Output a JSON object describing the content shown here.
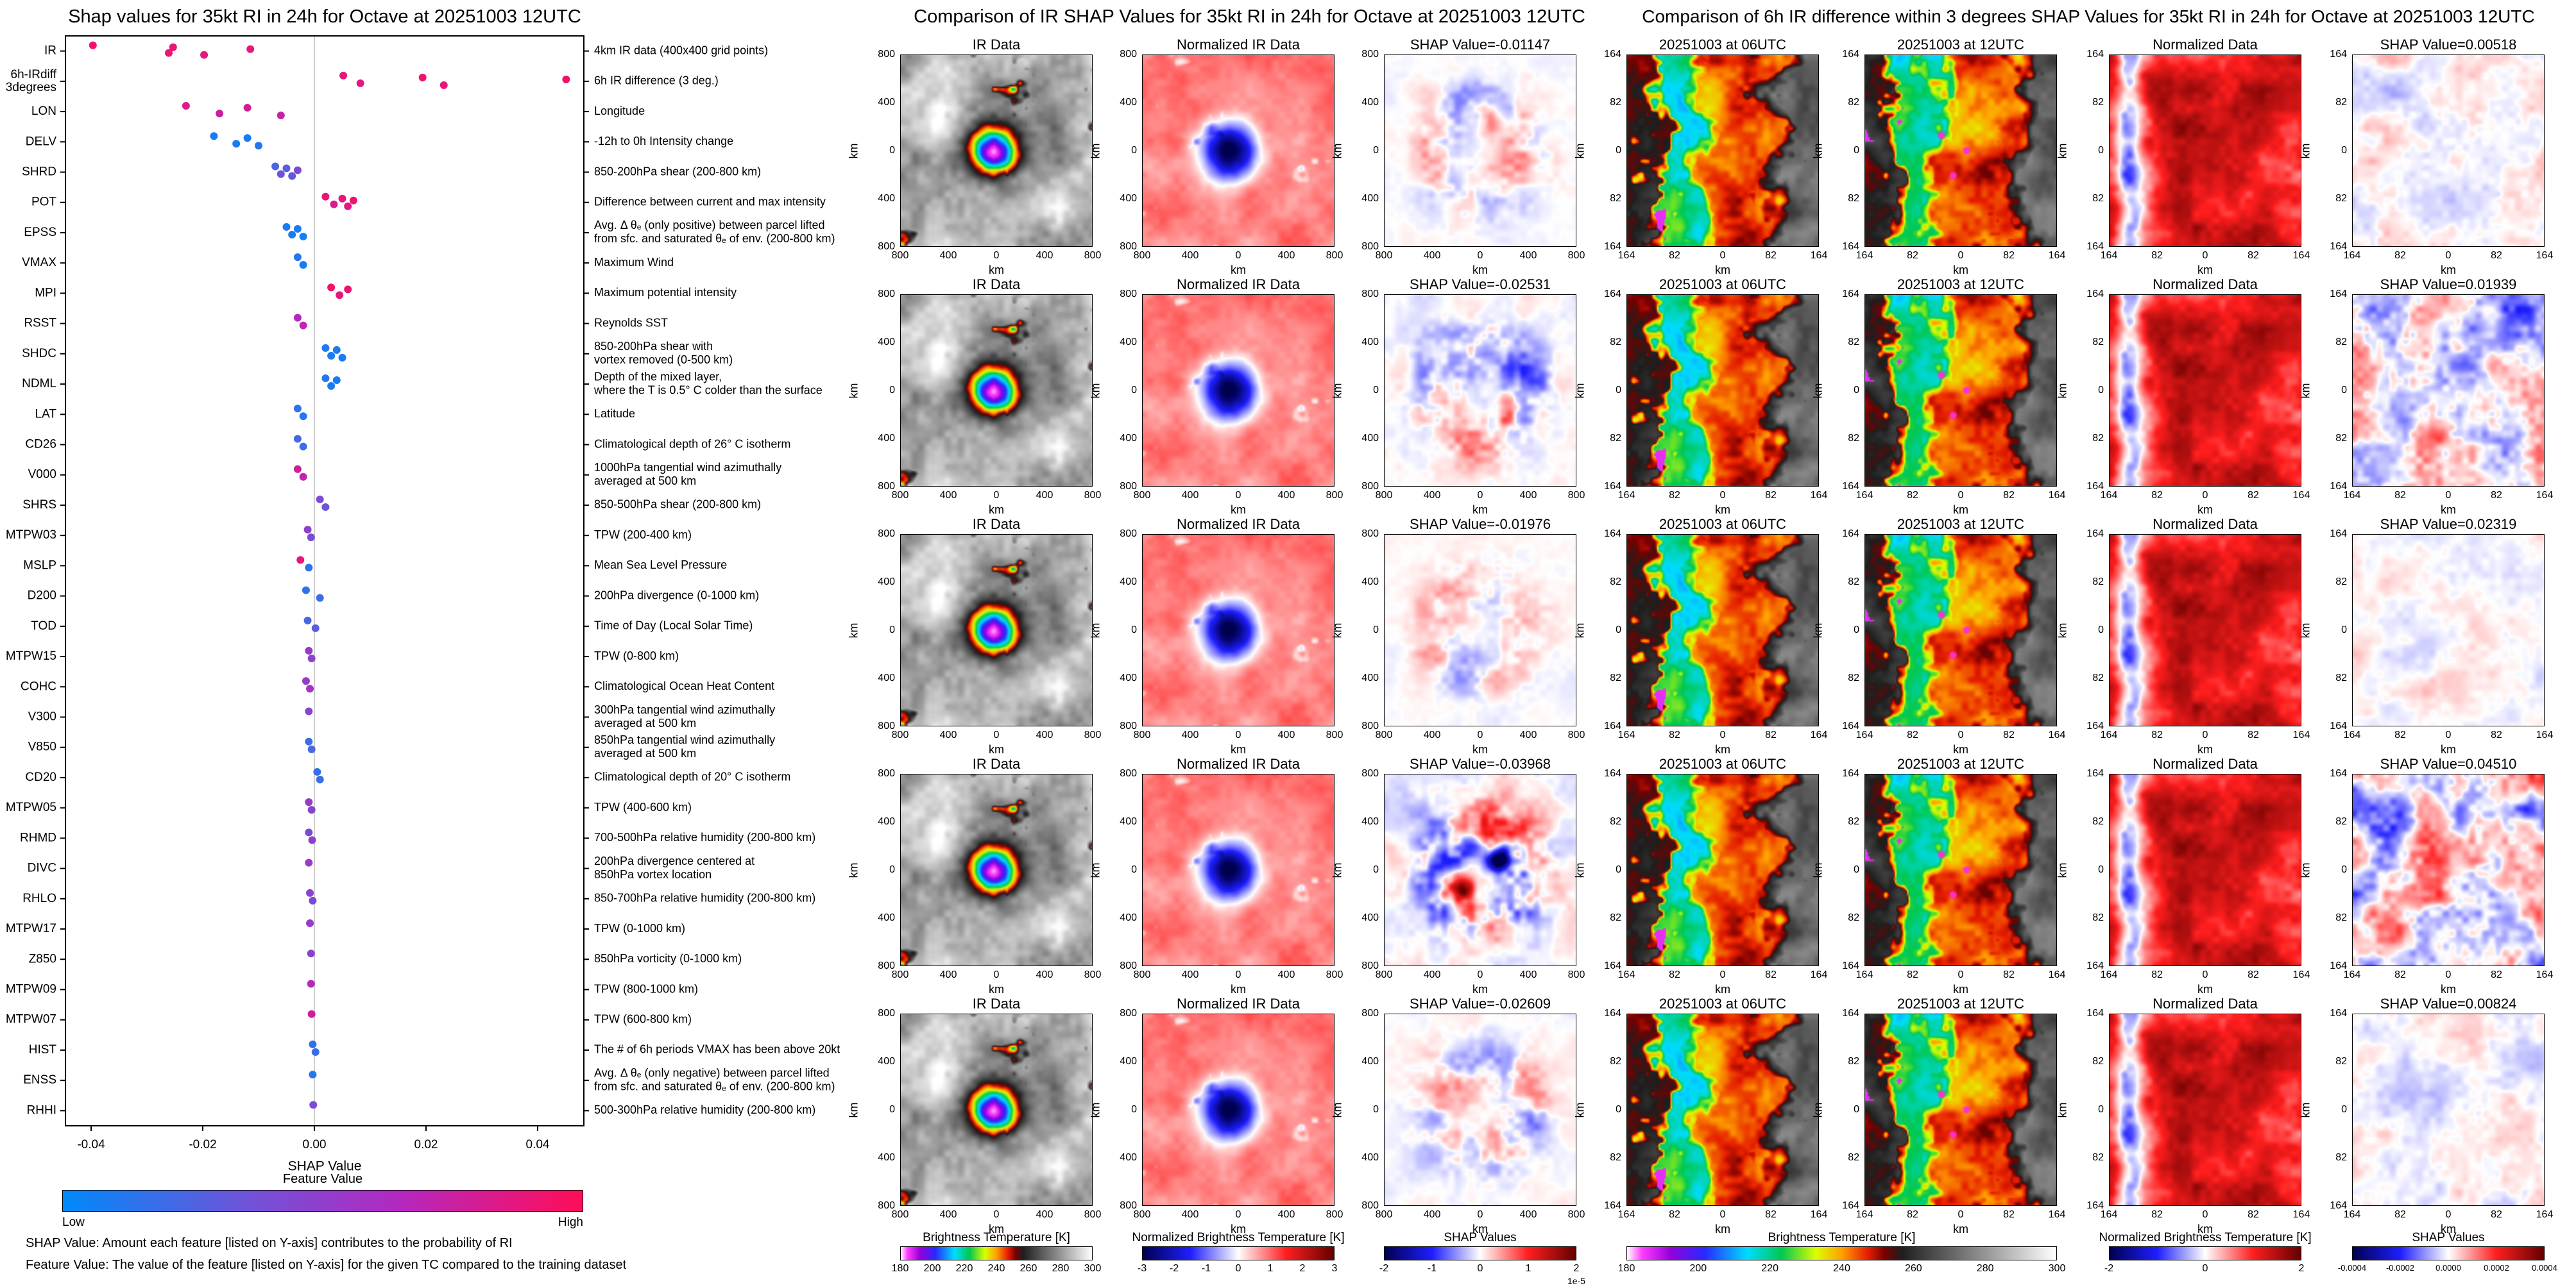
{
  "chart_data": [
    {
      "type": "scatter",
      "id": "shap-beeswarm",
      "title": "Shap values for 35kt RI in 24h for Octave at 20251003 12UTC",
      "xlabel": "SHAP Value",
      "xlim": [
        -0.05,
        0.05
      ],
      "xticks": [
        -0.04,
        -0.02,
        0,
        0.02,
        0.04
      ],
      "colorbar": {
        "title": "Feature Value",
        "low": "Low",
        "high": "High",
        "low_color": "#0089fa",
        "high_color": "#ff0d57"
      },
      "footnotes": [
        "SHAP Value: Amount each feature [listed on Y-axis] contributes to the probability of RI",
        "Feature Value: The value of the feature [listed on Y-axis] for the given TC compared to the training dataset"
      ],
      "features": [
        {
          "name": "IR",
          "desc": "4km IR data (400x400 grid points)",
          "points": [
            [
              -0.03968,
              0.95
            ],
            [
              -0.02609,
              0.9
            ],
            [
              -0.02531,
              0.92
            ],
            [
              -0.01976,
              0.88
            ],
            [
              -0.01147,
              0.9
            ]
          ]
        },
        {
          "name": "6h-IRdiff\n3degrees",
          "desc": "6h IR difference (3 deg.)",
          "points": [
            [
              0.00518,
              0.9
            ],
            [
              0.00824,
              0.88
            ],
            [
              0.01939,
              0.92
            ],
            [
              0.02319,
              0.9
            ],
            [
              0.0451,
              0.95
            ]
          ]
        },
        {
          "name": "LON",
          "desc": "Longitude",
          "points": [
            [
              -0.023,
              0.85
            ],
            [
              -0.017,
              0.8
            ],
            [
              -0.012,
              0.82
            ],
            [
              -0.006,
              0.78
            ]
          ]
        },
        {
          "name": "DELV",
          "desc": "-12h to 0h Intensity change",
          "points": [
            [
              -0.018,
              0.1
            ],
            [
              -0.014,
              0.12
            ],
            [
              -0.012,
              0.1
            ],
            [
              -0.01,
              0.15
            ]
          ]
        },
        {
          "name": "SHRD",
          "desc": "850-200hPa shear (200-800 km)",
          "points": [
            [
              -0.007,
              0.3
            ],
            [
              -0.006,
              0.45
            ],
            [
              -0.005,
              0.35
            ],
            [
              -0.004,
              0.4
            ],
            [
              -0.003,
              0.5
            ]
          ]
        },
        {
          "name": "POT",
          "desc": "Difference between current and max intensity",
          "points": [
            [
              0.002,
              0.9
            ],
            [
              0.0035,
              0.85
            ],
            [
              0.005,
              0.9
            ],
            [
              0.006,
              0.88
            ],
            [
              0.007,
              0.92
            ]
          ]
        },
        {
          "name": "EPSS",
          "desc": "Avg. Δ θₑ (only positive) between parcel lifted\nfrom sfc. and saturated θₑ of env. (200-800 km)",
          "points": [
            [
              -0.005,
              0.1
            ],
            [
              -0.004,
              0.12
            ],
            [
              -0.003,
              0.1
            ],
            [
              -0.002,
              0.08
            ]
          ]
        },
        {
          "name": "VMAX",
          "desc": "Maximum Wind",
          "points": [
            [
              -0.003,
              0.15
            ],
            [
              -0.002,
              0.1
            ]
          ]
        },
        {
          "name": "MPI",
          "desc": "Maximum potential intensity",
          "points": [
            [
              0.003,
              0.95
            ],
            [
              0.0045,
              0.9
            ],
            [
              0.006,
              0.92
            ]
          ]
        },
        {
          "name": "RSST",
          "desc": "Reynolds SST",
          "points": [
            [
              -0.003,
              0.7
            ],
            [
              -0.002,
              0.75
            ]
          ]
        },
        {
          "name": "SHDC",
          "desc": "850-200hPa shear with\nvortex removed (0-500 km)",
          "points": [
            [
              0.002,
              0.15
            ],
            [
              0.003,
              0.1
            ],
            [
              0.004,
              0.12
            ],
            [
              0.005,
              0.1
            ]
          ]
        },
        {
          "name": "NDML",
          "desc": "Depth of the mixed layer,\nwhere the T is 0.5° C colder than the surface",
          "points": [
            [
              0.002,
              0.15
            ],
            [
              0.003,
              0.12
            ],
            [
              0.004,
              0.1
            ]
          ]
        },
        {
          "name": "LAT",
          "desc": "Latitude",
          "points": [
            [
              -0.003,
              0.2
            ],
            [
              -0.002,
              0.15
            ]
          ]
        },
        {
          "name": "CD26",
          "desc": "Climatological depth of 26° C isotherm",
          "points": [
            [
              -0.003,
              0.3
            ],
            [
              -0.002,
              0.25
            ]
          ]
        },
        {
          "name": "V000",
          "desc": "1000hPa tangential wind azimuthally\naveraged at 500 km",
          "points": [
            [
              -0.003,
              0.8
            ],
            [
              -0.002,
              0.75
            ]
          ]
        },
        {
          "name": "SHRS",
          "desc": "850-500hPa shear (200-800 km)",
          "points": [
            [
              0.001,
              0.5
            ],
            [
              0.002,
              0.45
            ]
          ]
        },
        {
          "name": "MTPW03",
          "desc": "TPW (200-400 km)",
          "points": [
            [
              -0.0012,
              0.55
            ],
            [
              -0.0006,
              0.5
            ]
          ]
        },
        {
          "name": "MSLP",
          "desc": "Mean Sea Level Pressure",
          "points": [
            [
              -0.0025,
              0.9
            ],
            [
              -0.001,
              0.2
            ]
          ]
        },
        {
          "name": "D200",
          "desc": "200hPa divergence (0-1000 km)",
          "points": [
            [
              -0.0015,
              0.2
            ],
            [
              0.001,
              0.25
            ]
          ]
        },
        {
          "name": "TOD",
          "desc": "Time of Day (Local Solar Time)",
          "points": [
            [
              -0.0012,
              0.3
            ],
            [
              0.0002,
              0.35
            ]
          ]
        },
        {
          "name": "MTPW15",
          "desc": "TPW (0-800 km)",
          "points": [
            [
              -0.001,
              0.6
            ],
            [
              -0.0005,
              0.55
            ]
          ]
        },
        {
          "name": "COHC",
          "desc": "Climatological Ocean Heat Content",
          "points": [
            [
              -0.0015,
              0.6
            ],
            [
              -0.0008,
              0.65
            ]
          ]
        },
        {
          "name": "V300",
          "desc": "300hPa tangential wind azimuthally\naveraged at 500 km",
          "points": [
            [
              -0.001,
              0.55
            ]
          ]
        },
        {
          "name": "V850",
          "desc": "850hPa tangential wind azimuthally\naveraged at 500 km",
          "points": [
            [
              -0.001,
              0.25
            ],
            [
              -0.0005,
              0.3
            ]
          ]
        },
        {
          "name": "CD20",
          "desc": "Climatological depth of 20° C isotherm",
          "points": [
            [
              0.0005,
              0.2
            ],
            [
              0.001,
              0.25
            ]
          ]
        },
        {
          "name": "MTPW05",
          "desc": "TPW (400-600 km)",
          "points": [
            [
              -0.001,
              0.6
            ],
            [
              -0.0005,
              0.55
            ]
          ]
        },
        {
          "name": "RHMD",
          "desc": "700-500hPa relative humidity (200-800 km)",
          "points": [
            [
              -0.001,
              0.5
            ],
            [
              -0.0004,
              0.55
            ]
          ]
        },
        {
          "name": "DIVC",
          "desc": "200hPa divergence centered at\n850hPa vortex location",
          "points": [
            [
              -0.001,
              0.6
            ]
          ]
        },
        {
          "name": "RHLO",
          "desc": "850-700hPa relative humidity (200-800 km)",
          "points": [
            [
              -0.0008,
              0.55
            ],
            [
              -0.0003,
              0.5
            ]
          ]
        },
        {
          "name": "MTPW17",
          "desc": "TPW (0-1000 km)",
          "points": [
            [
              -0.0008,
              0.6
            ]
          ]
        },
        {
          "name": "Z850",
          "desc": "850hPa vorticity (0-1000 km)",
          "points": [
            [
              -0.0006,
              0.55
            ]
          ]
        },
        {
          "name": "MTPW09",
          "desc": "TPW (800-1000 km)",
          "points": [
            [
              -0.0006,
              0.7
            ]
          ]
        },
        {
          "name": "MTPW07",
          "desc": "TPW (600-800 km)",
          "points": [
            [
              -0.0005,
              0.8
            ]
          ]
        },
        {
          "name": "HIST",
          "desc": "The # of 6h periods VMAX has been above 20kt",
          "points": [
            [
              -0.0003,
              0.2
            ],
            [
              0.0002,
              0.25
            ]
          ]
        },
        {
          "name": "ENSS",
          "desc": "Avg. Δ θₑ (only negative) between parcel lifted\nfrom sfc. and saturated θₑ of env. (200-800 km)",
          "points": [
            [
              -0.0003,
              0.15
            ]
          ]
        },
        {
          "name": "RHHI",
          "desc": "500-300hPa relative humidity (200-800 km)",
          "points": [
            [
              -0.0002,
              0.5
            ]
          ]
        }
      ]
    },
    {
      "type": "heatmap",
      "id": "ir-shap-grid",
      "title": "Comparison of IR SHAP Values for 35kt RI in 24h for Octave at 20251003 12UTC",
      "col_titles": [
        "IR Data",
        "Normalized IR Data"
      ],
      "rows": [
        {
          "shap_label": "SHAP Value=-0.01147",
          "shap_value": -0.01147
        },
        {
          "shap_label": "SHAP Value=-0.02531",
          "shap_value": -0.02531
        },
        {
          "shap_label": "SHAP Value=-0.01976",
          "shap_value": -0.01976
        },
        {
          "shap_label": "SHAP Value=-0.03968",
          "shap_value": -0.03968
        },
        {
          "shap_label": "SHAP Value=-0.02609",
          "shap_value": -0.02609
        }
      ],
      "axis": {
        "label": "km",
        "ticks": [
          "800",
          "400",
          "0",
          "400",
          "800"
        ]
      },
      "colorbars": [
        {
          "label": "Brightness Temperature [K]",
          "ticks": [
            "180",
            "200",
            "220",
            "240",
            "260",
            "280",
            "300"
          ],
          "palette": "ir"
        },
        {
          "label": "Normalized Brightness Temperature [K]",
          "ticks": [
            "-3",
            "-2",
            "-1",
            "0",
            "1",
            "2",
            "3"
          ],
          "palette": "seismic"
        },
        {
          "label": "SHAP Values",
          "ticks": [
            "-2",
            "-1",
            "0",
            "1",
            "2"
          ],
          "scale_note": "1e-5",
          "palette": "seismic"
        }
      ]
    },
    {
      "type": "heatmap",
      "id": "irdiff-shap-grid",
      "title": "Comparison of 6h IR difference within 3 degrees SHAP Values for 35kt RI in 24h for Octave at 20251003 12UTC",
      "col_titles": [
        "20251003 at 06UTC",
        "20251003 at 12UTC",
        "Normalized Data"
      ],
      "rows": [
        {
          "shap_label": "SHAP Value=0.00518",
          "shap_value": 0.00518
        },
        {
          "shap_label": "SHAP Value=0.01939",
          "shap_value": 0.01939
        },
        {
          "shap_label": "SHAP Value=0.02319",
          "shap_value": 0.02319
        },
        {
          "shap_label": "SHAP Value=0.04510",
          "shap_value": 0.0451
        },
        {
          "shap_label": "SHAP Value=0.00824",
          "shap_value": 0.00824
        }
      ],
      "axis": {
        "label": "km",
        "ticks": [
          "164",
          "82",
          "0",
          "82",
          "164"
        ]
      },
      "colorbars": [
        {
          "label": "Brightness Temperature [K]",
          "ticks": [
            "180",
            "200",
            "220",
            "240",
            "260",
            "280",
            "300"
          ],
          "palette": "ir"
        },
        {
          "label": "Normalized Brightness Temperature [K]",
          "ticks": [
            "-2",
            "0",
            "2"
          ],
          "palette": "seismic"
        },
        {
          "label": "SHAP Values",
          "ticks": [
            "-0.0004",
            "-0.0002",
            "0.0000",
            "0.0002",
            "0.0004"
          ],
          "palette": "seismic"
        }
      ]
    }
  ]
}
